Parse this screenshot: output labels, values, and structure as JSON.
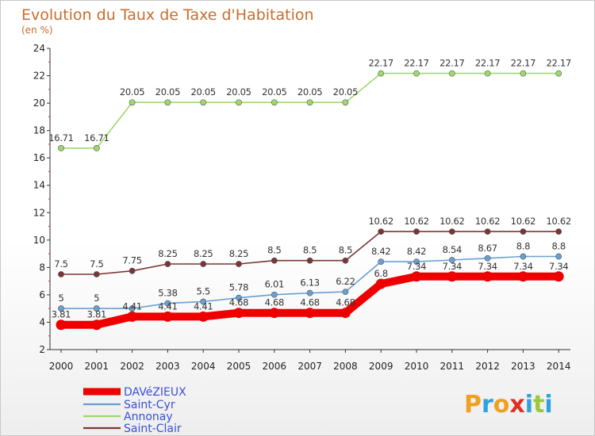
{
  "chart_data": {
    "type": "line",
    "title": "Evolution du Taux de Taxe d'Habitation",
    "ylabel": "(en %)",
    "xlabel": "",
    "ylim": [
      2,
      24
    ],
    "yticks": [
      2,
      4,
      6,
      8,
      10,
      12,
      14,
      16,
      18,
      20,
      22,
      24
    ],
    "grid": false,
    "legend_position": "bottom-left",
    "categories": [
      "2000",
      "2001",
      "2002",
      "2003",
      "2004",
      "2005",
      "2006",
      "2007",
      "2008",
      "2009",
      "2010",
      "2011",
      "2012",
      "2013",
      "2014"
    ],
    "series": [
      {
        "name": "DAVéZIEUX",
        "color": "#ee0000",
        "values": [
          3.81,
          3.81,
          4.41,
          4.41,
          4.41,
          4.68,
          4.68,
          4.68,
          4.68,
          6.8,
          7.34,
          7.34,
          7.34,
          7.34,
          7.34
        ],
        "labels": [
          "3.81",
          "3.81",
          "4.41",
          "4.41",
          "4.41",
          "4.68",
          "4.68",
          "4.68",
          "4.68",
          "6.8",
          "7.34",
          "7.34",
          "7.34",
          "7.34",
          "7.34"
        ]
      },
      {
        "name": "Saint-Cyr",
        "color": "#6a9fd2",
        "values": [
          5,
          5,
          5,
          5.38,
          5.5,
          5.78,
          6.01,
          6.13,
          6.22,
          8.42,
          8.42,
          8.54,
          8.67,
          8.8,
          8.8
        ],
        "labels": [
          "5",
          "5",
          "",
          "5.38",
          "5.5",
          "5.78",
          "6.01",
          "6.13",
          "6.22",
          "8.42",
          "8.42",
          "8.54",
          "8.67",
          "8.8",
          "8.8"
        ]
      },
      {
        "name": "Annonay",
        "color": "#9fd86e",
        "values": [
          16.71,
          16.71,
          20.05,
          20.05,
          20.05,
          20.05,
          20.05,
          20.05,
          20.05,
          22.17,
          22.17,
          22.17,
          22.17,
          22.17,
          22.17
        ],
        "labels": [
          "16.71",
          "16.71",
          "20.05",
          "20.05",
          "20.05",
          "20.05",
          "20.05",
          "20.05",
          "20.05",
          "22.17",
          "22.17",
          "22.17",
          "22.17",
          "22.17",
          "22.17"
        ]
      },
      {
        "name": "Saint-Clair",
        "color": "#7b3535",
        "values": [
          7.5,
          7.5,
          7.75,
          8.25,
          8.25,
          8.25,
          8.5,
          8.5,
          8.5,
          10.62,
          10.62,
          10.62,
          10.62,
          10.62,
          10.62
        ],
        "labels": [
          "7.5",
          "7.5",
          "7.75",
          "8.25",
          "8.25",
          "8.25",
          "8.5",
          "8.5",
          "8.5",
          "10.62",
          "10.62",
          "10.62",
          "10.62",
          "10.62",
          "10.62"
        ]
      }
    ]
  },
  "logo": {
    "letters": [
      "P",
      "r",
      "o",
      "x",
      "i",
      "t",
      "i"
    ],
    "colors": [
      "#f0a020",
      "#30a0e0",
      "#f0a020",
      "#e03020",
      "#30a0e0",
      "#9bc83c",
      "#30a0e0"
    ]
  }
}
